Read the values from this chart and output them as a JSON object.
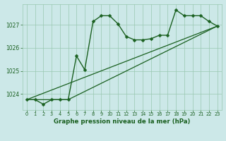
{
  "title": "Graphe pression niveau de la mer (hPa)",
  "background_color": "#cce8e8",
  "grid_color": "#99c8b0",
  "line_color": "#1a6020",
  "xlim": [
    -0.5,
    23.5
  ],
  "ylim": [
    1023.3,
    1027.9
  ],
  "yticks": [
    1024,
    1025,
    1026,
    1027
  ],
  "xticks": [
    0,
    1,
    2,
    3,
    4,
    5,
    6,
    7,
    8,
    9,
    10,
    11,
    12,
    13,
    14,
    15,
    16,
    17,
    18,
    19,
    20,
    21,
    22,
    23
  ],
  "series1_x": [
    0,
    1,
    2,
    3,
    4,
    5,
    6,
    7,
    8,
    9,
    10,
    11,
    12,
    13,
    14,
    15,
    16,
    17,
    18,
    19,
    20,
    21,
    22,
    23
  ],
  "series1_y": [
    1023.75,
    1023.75,
    1023.55,
    1023.75,
    1023.75,
    1023.75,
    1025.65,
    1025.05,
    1027.15,
    1027.4,
    1027.4,
    1027.05,
    1026.5,
    1026.35,
    1026.35,
    1026.4,
    1026.55,
    1026.55,
    1027.65,
    1027.4,
    1027.4,
    1027.4,
    1027.15,
    1026.95
  ],
  "series2_x": [
    0,
    5,
    23
  ],
  "series2_y": [
    1023.75,
    1023.75,
    1026.95
  ],
  "series3_x": [
    0,
    23
  ],
  "series3_y": [
    1023.75,
    1026.95
  ]
}
